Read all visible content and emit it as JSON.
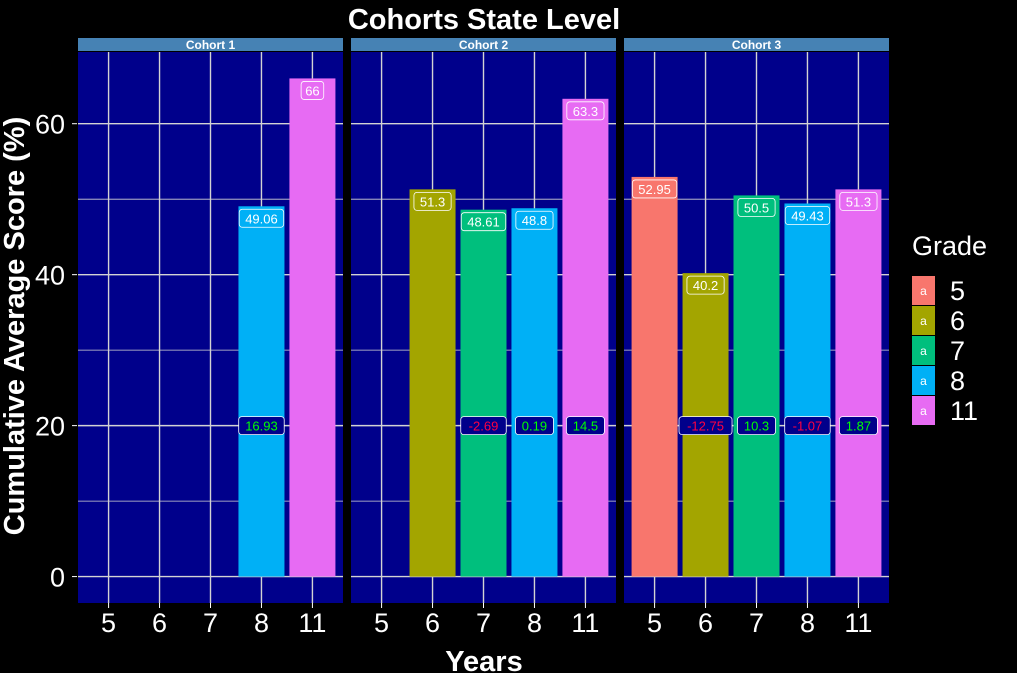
{
  "chart_data": {
    "type": "bar",
    "title": "Cohorts State Level",
    "xlabel": "Years",
    "ylabel": "Cumulative Average Score (%)",
    "ylim": [
      -3.5,
      69.5
    ],
    "yticks": [
      0,
      20,
      40,
      60
    ],
    "grid": true,
    "legend": {
      "title": "Grade",
      "position": "right",
      "key_glyph": "a",
      "entries": [
        {
          "label": "5",
          "color": "#F8766D"
        },
        {
          "label": "6",
          "color": "#A3A500"
        },
        {
          "label": "7",
          "color": "#00BF7D"
        },
        {
          "label": "8",
          "color": "#00B0F6"
        },
        {
          "label": "11",
          "color": "#E76BF3"
        }
      ]
    },
    "change_label_y": 20,
    "colors": {
      "panel_bg": "#00008B",
      "strip_bg": "#4682B4",
      "grid": "#D3D3D3",
      "page_bg": "#000000",
      "positive_change": "#00FF00",
      "negative_change": "#FF0040"
    },
    "facets": [
      {
        "name": "Cohort 1",
        "categories": [
          "5",
          "6",
          "7",
          "8",
          "11"
        ],
        "bars": [
          {
            "category": "8",
            "value": 49.06,
            "label": "49.06",
            "change": "16.93",
            "change_sign": "positive"
          },
          {
            "category": "11",
            "value": 66,
            "label": "66",
            "change": "",
            "change_sign": "none"
          }
        ]
      },
      {
        "name": "Cohort 2",
        "categories": [
          "5",
          "6",
          "7",
          "8",
          "11"
        ],
        "bars": [
          {
            "category": "6",
            "value": 51.3,
            "label": "51.3",
            "change": "",
            "change_sign": "none"
          },
          {
            "category": "7",
            "value": 48.61,
            "label": "48.61",
            "change": "-2.69",
            "change_sign": "negative"
          },
          {
            "category": "8",
            "value": 48.8,
            "label": "48.8",
            "change": "0.19",
            "change_sign": "positive"
          },
          {
            "category": "11",
            "value": 63.3,
            "label": "63.3",
            "change": "14.5",
            "change_sign": "positive"
          }
        ]
      },
      {
        "name": "Cohort 3",
        "categories": [
          "5",
          "6",
          "7",
          "8",
          "11"
        ],
        "bars": [
          {
            "category": "5",
            "value": 52.95,
            "label": "52.95",
            "change": "",
            "change_sign": "none"
          },
          {
            "category": "6",
            "value": 40.2,
            "label": "40.2",
            "change": "-12.75",
            "change_sign": "negative"
          },
          {
            "category": "7",
            "value": 50.5,
            "label": "50.5",
            "change": "10.3",
            "change_sign": "positive"
          },
          {
            "category": "8",
            "value": 49.43,
            "label": "49.43",
            "change": "-1.07",
            "change_sign": "negative"
          },
          {
            "category": "11",
            "value": 51.3,
            "label": "51.3",
            "change": "1.87",
            "change_sign": "positive"
          }
        ]
      }
    ]
  }
}
